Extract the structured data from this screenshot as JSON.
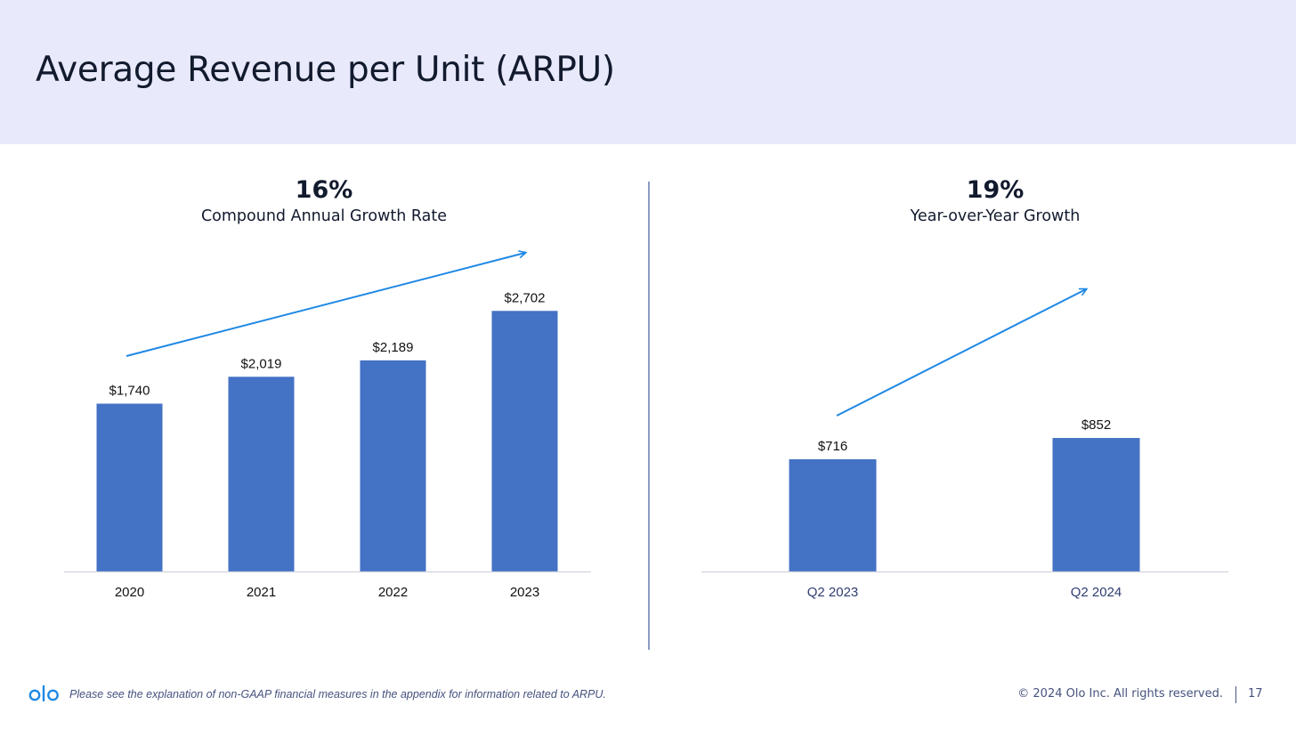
{
  "page": {
    "title": "Average Revenue per Unit (ARPU)",
    "footnote": "Please see the explanation of non-GAAP financial measures in the appendix for information related to ARPU.",
    "copyright": "© 2024 Olo Inc. All rights reserved.",
    "page_number": "17",
    "logo_text": "olo",
    "colors": {
      "header_bg": "#e8e9fa",
      "bar": "#4472c4",
      "arrow": "#1e88e5",
      "brand": "#1e88e5",
      "footer_text": "#46527e"
    }
  },
  "chart_data": [
    {
      "type": "bar",
      "headline": "16%",
      "subheadline": "Compound Annual Growth Rate",
      "categories": [
        "2020",
        "2021",
        "2022",
        "2023"
      ],
      "values": [
        1740,
        2019,
        2189,
        2702
      ],
      "data_labels": [
        "$1,740",
        "$2,019",
        "$2,189",
        "$2,702"
      ],
      "ylim": [
        0,
        3000
      ],
      "grid": false,
      "trend_arrow": true
    },
    {
      "type": "bar",
      "headline": "19%",
      "subheadline": "Year-over-Year Growth",
      "categories": [
        "Q2 2023",
        "Q2 2024"
      ],
      "values": [
        716,
        852
      ],
      "data_labels": [
        "$716",
        "$852"
      ],
      "ylim": [
        0,
        1000
      ],
      "grid": false,
      "trend_arrow": true
    }
  ]
}
